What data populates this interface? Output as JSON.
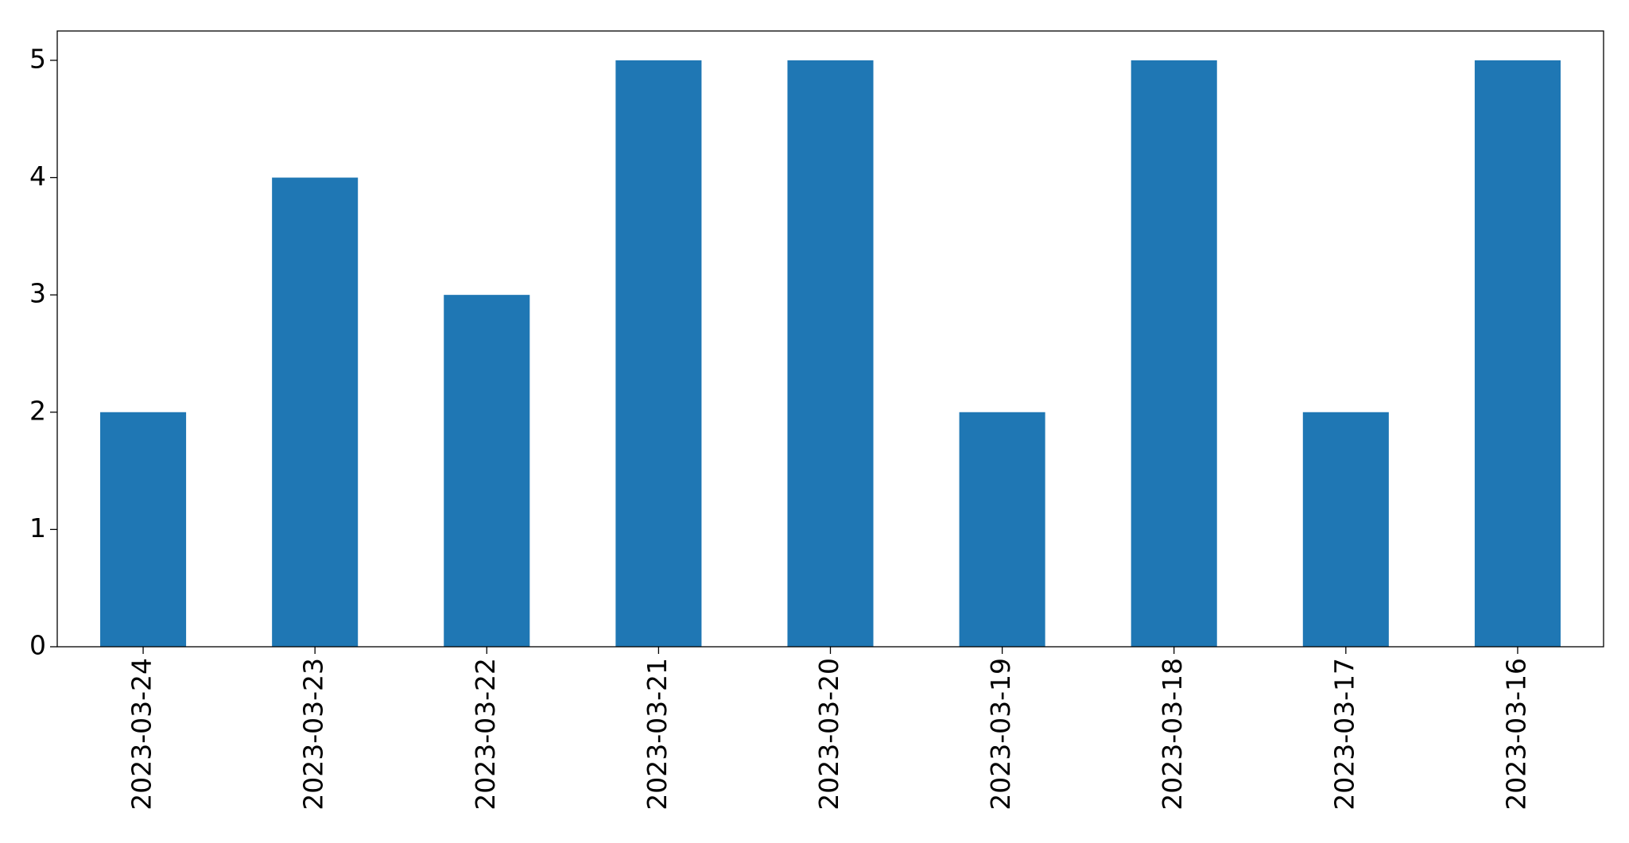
{
  "chart_data": {
    "type": "bar",
    "categories": [
      "2023-03-24",
      "2023-03-23",
      "2023-03-22",
      "2023-03-21",
      "2023-03-20",
      "2023-03-19",
      "2023-03-18",
      "2023-03-17",
      "2023-03-16"
    ],
    "values": [
      2,
      4,
      3,
      5,
      5,
      2,
      5,
      2,
      5
    ],
    "color": "#1f77b4",
    "ylim": [
      0,
      5.25
    ],
    "yticks": [
      0,
      1,
      2,
      3,
      4,
      5
    ],
    "grid": false
  }
}
